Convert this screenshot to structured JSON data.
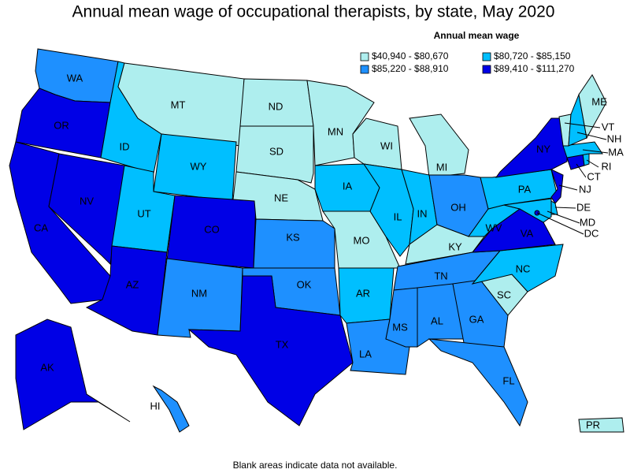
{
  "title": "Annual mean wage of occupational therapists, by state, May 2020",
  "legend": {
    "title": "Annual mean wage",
    "items": [
      {
        "label": "$40,940 - $80,670",
        "color": "#aeeeee"
      },
      {
        "label": "$80,720 - $85,150",
        "color": "#00bfff"
      },
      {
        "label": "$85,220 - $88,910",
        "color": "#1e90ff"
      },
      {
        "label": "$89,410 - $111,270",
        "color": "#0000e6"
      }
    ]
  },
  "states": [
    {
      "label": "WA",
      "color": "#1e90ff"
    },
    {
      "label": "OR",
      "color": "#0000e6"
    },
    {
      "label": "CA",
      "color": "#0000e6"
    },
    {
      "label": "NV",
      "color": "#0000e6"
    },
    {
      "label": "ID",
      "color": "#00bfff"
    },
    {
      "label": "MT",
      "color": "#aeeeee"
    },
    {
      "label": "WY",
      "color": "#00bfff"
    },
    {
      "label": "UT",
      "color": "#00bfff"
    },
    {
      "label": "AZ",
      "color": "#0000e6"
    },
    {
      "label": "CO",
      "color": "#0000e6"
    },
    {
      "label": "NM",
      "color": "#1e90ff"
    },
    {
      "label": "ND",
      "color": "#aeeeee"
    },
    {
      "label": "SD",
      "color": "#aeeeee"
    },
    {
      "label": "NE",
      "color": "#aeeeee"
    },
    {
      "label": "KS",
      "color": "#1e90ff"
    },
    {
      "label": "OK",
      "color": "#1e90ff"
    },
    {
      "label": "TX",
      "color": "#0000e6"
    },
    {
      "label": "MN",
      "color": "#aeeeee"
    },
    {
      "label": "IA",
      "color": "#00bfff"
    },
    {
      "label": "MO",
      "color": "#aeeeee"
    },
    {
      "label": "AR",
      "color": "#00bfff"
    },
    {
      "label": "LA",
      "color": "#1e90ff"
    },
    {
      "label": "WI",
      "color": "#aeeeee"
    },
    {
      "label": "IL",
      "color": "#00bfff"
    },
    {
      "label": "MI",
      "color": "#aeeeee"
    },
    {
      "label": "IN",
      "color": "#00bfff"
    },
    {
      "label": "OH",
      "color": "#1e90ff"
    },
    {
      "label": "KY",
      "color": "#aeeeee"
    },
    {
      "label": "TN",
      "color": "#1e90ff"
    },
    {
      "label": "MS",
      "color": "#1e90ff"
    },
    {
      "label": "AL",
      "color": "#1e90ff"
    },
    {
      "label": "GA",
      "color": "#1e90ff"
    },
    {
      "label": "FL",
      "color": "#1e90ff"
    },
    {
      "label": "SC",
      "color": "#aeeeee"
    },
    {
      "label": "NC",
      "color": "#00bfff"
    },
    {
      "label": "VA",
      "color": "#0000e6"
    },
    {
      "label": "WV",
      "color": "#00bfff"
    },
    {
      "label": "PA",
      "color": "#00bfff"
    },
    {
      "label": "NY",
      "color": "#0000e6"
    },
    {
      "label": "NJ",
      "color": "#0000e6"
    },
    {
      "label": "DE",
      "color": "#00bfff"
    },
    {
      "label": "MD",
      "color": "#00bfff"
    },
    {
      "label": "CT",
      "color": "#0000e6"
    },
    {
      "label": "RI",
      "color": "#00bfff"
    },
    {
      "label": "MA",
      "color": "#00bfff"
    },
    {
      "label": "VT",
      "color": "#aeeeee"
    },
    {
      "label": "NH",
      "color": "#00bfff"
    },
    {
      "label": "ME",
      "color": "#aeeeee"
    },
    {
      "label": "AK",
      "color": "#0000e6"
    },
    {
      "label": "HI",
      "color": "#1e90ff"
    },
    {
      "label": "PR",
      "color": "#aeeeee"
    },
    {
      "label": "DC",
      "color": "#0000e6"
    }
  ],
  "footnote": "Blank areas indicate data not available."
}
